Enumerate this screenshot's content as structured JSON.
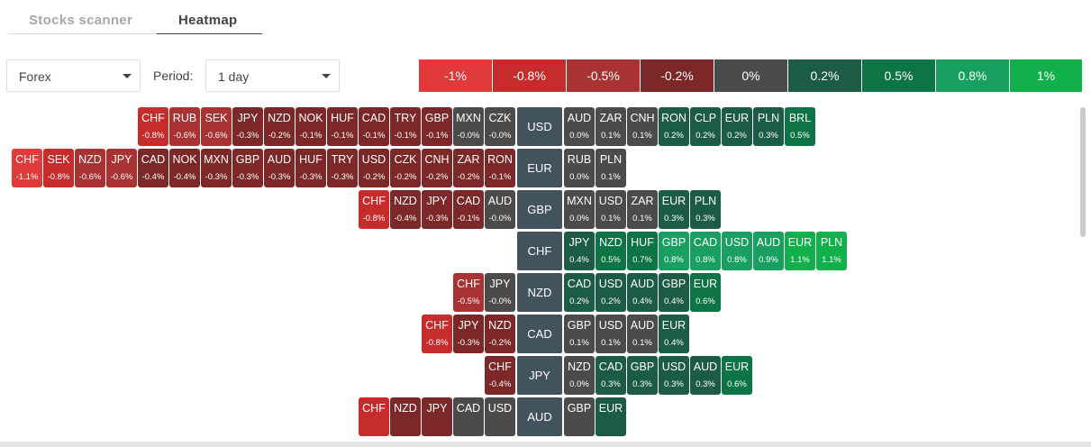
{
  "tabs": [
    {
      "label": "Stocks scanner",
      "active": false
    },
    {
      "label": "Heatmap",
      "active": true
    }
  ],
  "controls": {
    "market": "Forex",
    "period_label": "Period:",
    "period": "1 day"
  },
  "legend": [
    {
      "label": "-1%",
      "color": "#e03a3a"
    },
    {
      "label": "-0.8%",
      "color": "#c62c2c"
    },
    {
      "label": "-0.5%",
      "color": "#a93333"
    },
    {
      "label": "-0.2%",
      "color": "#7c2828"
    },
    {
      "label": "0%",
      "color": "#4b4b4b"
    },
    {
      "label": "0.2%",
      "color": "#1d5c44"
    },
    {
      "label": "0.5%",
      "color": "#0d7446"
    },
    {
      "label": "0.8%",
      "color": "#19a061"
    },
    {
      "label": "1%",
      "color": "#11b04a"
    }
  ],
  "rows": [
    {
      "base": "USD",
      "left": [
        [
          "CHF",
          "-0.8%"
        ],
        [
          "RUB",
          "-0.6%"
        ],
        [
          "SEK",
          "-0.6%"
        ],
        [
          "JPY",
          "-0.3%"
        ],
        [
          "NZD",
          "-0.2%"
        ],
        [
          "NOK",
          "-0.1%"
        ],
        [
          "HUF",
          "-0.1%"
        ],
        [
          "CAD",
          "-0.1%"
        ],
        [
          "TRY",
          "-0.1%"
        ],
        [
          "GBP",
          "-0.1%"
        ],
        [
          "MXN",
          "-0.0%"
        ],
        [
          "CZK",
          "-0.0%"
        ]
      ],
      "right": [
        [
          "AUD",
          "0.0%"
        ],
        [
          "ZAR",
          "0.1%"
        ],
        [
          "CNH",
          "0.1%"
        ],
        [
          "RON",
          "0.2%"
        ],
        [
          "CLP",
          "0.2%"
        ],
        [
          "EUR",
          "0.2%"
        ],
        [
          "PLN",
          "0.3%"
        ],
        [
          "BRL",
          "0.5%"
        ]
      ]
    },
    {
      "base": "EUR",
      "left": [
        [
          "CHF",
          "-1.1%"
        ],
        [
          "SEK",
          "-0.8%"
        ],
        [
          "NZD",
          "-0.6%"
        ],
        [
          "JPY",
          "-0.6%"
        ],
        [
          "CAD",
          "-0.4%"
        ],
        [
          "NOK",
          "-0.4%"
        ],
        [
          "MXN",
          "-0.3%"
        ],
        [
          "GBP",
          "-0.3%"
        ],
        [
          "AUD",
          "-0.3%"
        ],
        [
          "HUF",
          "-0.3%"
        ],
        [
          "TRY",
          "-0.3%"
        ],
        [
          "USD",
          "-0.2%"
        ],
        [
          "CZK",
          "-0.2%"
        ],
        [
          "CNH",
          "-0.2%"
        ],
        [
          "ZAR",
          "-0.2%"
        ],
        [
          "RON",
          "-0.1%"
        ]
      ],
      "right": [
        [
          "RUB",
          "0.0%"
        ],
        [
          "PLN",
          "0.1%"
        ]
      ]
    },
    {
      "base": "GBP",
      "left": [
        [
          "CHF",
          "-0.8%"
        ],
        [
          "NZD",
          "-0.4%"
        ],
        [
          "JPY",
          "-0.3%"
        ],
        [
          "CAD",
          "-0.1%"
        ],
        [
          "AUD",
          "-0.0%"
        ]
      ],
      "right": [
        [
          "MXN",
          "0.0%"
        ],
        [
          "USD",
          "0.1%"
        ],
        [
          "ZAR",
          "0.1%"
        ],
        [
          "EUR",
          "0.3%"
        ],
        [
          "PLN",
          "0.3%"
        ]
      ]
    },
    {
      "base": "CHF",
      "left": [],
      "right": [
        [
          "JPY",
          "0.4%"
        ],
        [
          "NZD",
          "0.5%"
        ],
        [
          "HUF",
          "0.7%"
        ],
        [
          "GBP",
          "0.8%"
        ],
        [
          "CAD",
          "0.8%"
        ],
        [
          "USD",
          "0.8%"
        ],
        [
          "AUD",
          "0.9%"
        ],
        [
          "EUR",
          "1.1%"
        ],
        [
          "PLN",
          "1.1%"
        ]
      ]
    },
    {
      "base": "NZD",
      "left": [
        [
          "CHF",
          "-0.5%"
        ],
        [
          "JPY",
          "-0.0%"
        ]
      ],
      "right": [
        [
          "CAD",
          "0.2%"
        ],
        [
          "USD",
          "0.2%"
        ],
        [
          "AUD",
          "0.4%"
        ],
        [
          "GBP",
          "0.4%"
        ],
        [
          "EUR",
          "0.6%"
        ]
      ]
    },
    {
      "base": "CAD",
      "left": [
        [
          "CHF",
          "-0.8%"
        ],
        [
          "JPY",
          "-0.3%"
        ],
        [
          "NZD",
          "-0.2%"
        ]
      ],
      "right": [
        [
          "GBP",
          "0.1%"
        ],
        [
          "USD",
          "0.1%"
        ],
        [
          "AUD",
          "0.1%"
        ],
        [
          "EUR",
          "0.4%"
        ]
      ]
    },
    {
      "base": "JPY",
      "left": [
        [
          "CHF",
          "-0.4%"
        ]
      ],
      "right": [
        [
          "NZD",
          "0.0%"
        ],
        [
          "CAD",
          "0.3%"
        ],
        [
          "GBP",
          "0.3%"
        ],
        [
          "USD",
          "0.3%"
        ],
        [
          "AUD",
          "0.3%"
        ],
        [
          "EUR",
          "0.6%"
        ]
      ]
    },
    {
      "base": "AUD",
      "left": [
        [
          "CHF",
          ""
        ],
        [
          "NZD",
          ""
        ],
        [
          "JPY",
          ""
        ],
        [
          "CAD",
          ""
        ],
        [
          "USD",
          ""
        ]
      ],
      "right": [
        [
          "GBP",
          ""
        ],
        [
          "EUR",
          ""
        ]
      ]
    }
  ],
  "partial_row_colors": {
    "left": [
      "#c62c2c",
      "#7c2828",
      "#7c2828",
      "#4b4b4b",
      "#4b4b4b"
    ],
    "right": [
      "#4b4b4b",
      "#1d5c44"
    ]
  }
}
